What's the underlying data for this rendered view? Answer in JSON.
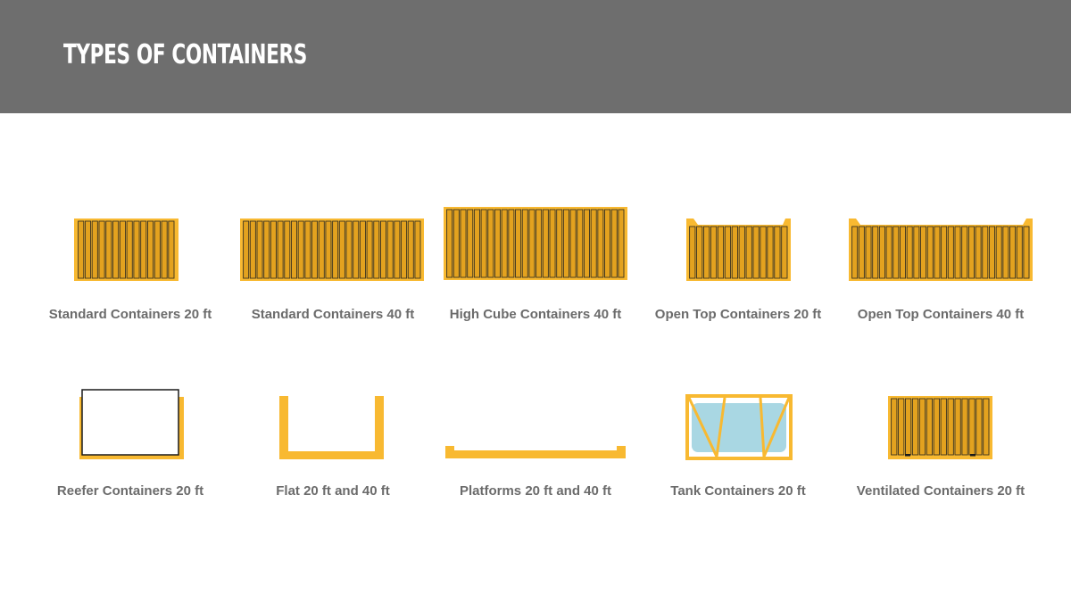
{
  "header": {
    "title": "TYPES OF CONTAINERS"
  },
  "colors": {
    "header_bg": "#6e6e6e",
    "container_fill": "#f8b931",
    "container_rib": "#e3a21f",
    "container_line": "#3a3220",
    "tank_fill": "#a9d7e3",
    "label_text": "#6b6b6b"
  },
  "containers": [
    {
      "id": "standard-20",
      "label": "Standard Containers 20 ft"
    },
    {
      "id": "standard-40",
      "label": "Standard Containers 40 ft"
    },
    {
      "id": "high-cube-40",
      "label": "High Cube Containers 40 ft"
    },
    {
      "id": "open-top-20",
      "label": "Open Top Containers 20 ft"
    },
    {
      "id": "open-top-40",
      "label": "Open Top Containers 40 ft"
    },
    {
      "id": "reefer-20",
      "label": "Reefer Containers 20 ft"
    },
    {
      "id": "flat-20-40",
      "label": "Flat 20 ft and 40 ft"
    },
    {
      "id": "platforms-20-40",
      "label": "Platforms 20 ft and 40 ft"
    },
    {
      "id": "tank-20",
      "label": "Tank Containers 20 ft"
    },
    {
      "id": "ventilated-20",
      "label": "Ventilated Containers 20 ft"
    }
  ]
}
